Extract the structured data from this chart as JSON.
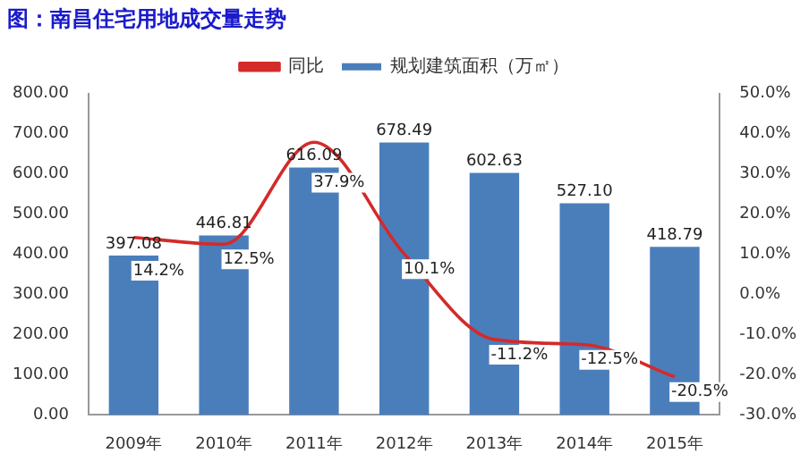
{
  "chart_data": {
    "type": "bar",
    "title": "图：南昌住宅用地成交量走势",
    "categories": [
      "2009年",
      "2010年",
      "2011年",
      "2012年",
      "2013年",
      "2014年",
      "2015年"
    ],
    "series": [
      {
        "name": "规划建筑面积（万㎡）",
        "color": "#4a7ebb",
        "values": [
          397.08,
          446.81,
          616.09,
          678.49,
          602.63,
          527.1,
          418.79
        ],
        "value_labels": [
          "397.08",
          "446.81",
          "616.09",
          "678.49",
          "602.63",
          "527.10",
          "418.79"
        ]
      },
      {
        "name": "同比",
        "type": "line",
        "axis": "y2",
        "color": "#d42a2a",
        "values": [
          14.2,
          12.5,
          37.9,
          10.1,
          -11.2,
          -12.5,
          -20.5
        ],
        "value_labels": [
          "14.2%",
          "12.5%",
          "37.9%",
          "10.1%",
          "-11.2%",
          "-12.5%",
          "-20.5%"
        ]
      }
    ],
    "ylim": [
      0,
      800
    ],
    "yticks": [
      {
        "value": 0,
        "label": "0.00"
      },
      {
        "value": 100,
        "label": "100.00"
      },
      {
        "value": 200,
        "label": "200.00"
      },
      {
        "value": 300,
        "label": "300.00"
      },
      {
        "value": 400,
        "label": "400.00"
      },
      {
        "value": 500,
        "label": "500.00"
      },
      {
        "value": 600,
        "label": "600.00"
      },
      {
        "value": 700,
        "label": "700.00"
      },
      {
        "value": 800,
        "label": "800.00"
      }
    ],
    "y2lim": [
      -30,
      50
    ],
    "y2ticks": [
      {
        "value": -30,
        "label": "-30.0%"
      },
      {
        "value": -20,
        "label": "-20.0%"
      },
      {
        "value": -10,
        "label": "-10.0%"
      },
      {
        "value": 0,
        "label": "0.0%"
      },
      {
        "value": 10,
        "label": "10.0%"
      },
      {
        "value": 20,
        "label": "20.0%"
      },
      {
        "value": 30,
        "label": "30.0%"
      },
      {
        "value": 40,
        "label": "40.0%"
      },
      {
        "value": 50,
        "label": "50.0%"
      }
    ],
    "grid": false,
    "legend": "top",
    "marker": "none",
    "line_style": "solid"
  }
}
